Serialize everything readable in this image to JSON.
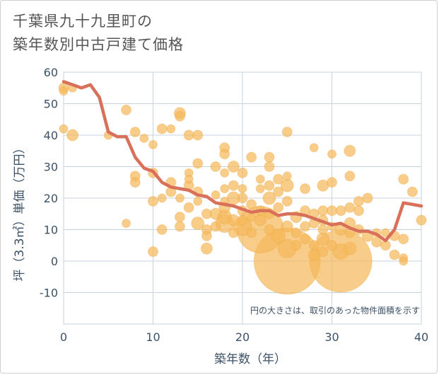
{
  "page": {
    "title": "千葉県九十九里町の\n築年数別中古戸建て価格"
  },
  "chart_data": {
    "type": "scatter",
    "title": "千葉県九十九里町の築年数別中古戸建て価格",
    "xlabel": "築年数（年）",
    "ylabel": "坪（3.3㎡）単価（万円）",
    "xlim": [
      0,
      40
    ],
    "ylim": [
      -20,
      60
    ],
    "xticks": [
      0,
      10,
      20,
      30,
      40
    ],
    "yticks": [
      -10,
      0,
      10,
      20,
      30,
      40,
      50,
      60
    ],
    "grid": true,
    "note": "円の大きさは、取引のあった物件面積を示す",
    "colors": {
      "bubble": "#f5b95b",
      "line": "#d9705a",
      "grid": "#c9d3df",
      "text": "#3d5166"
    },
    "trend_line": {
      "x": [
        0,
        1,
        2,
        3,
        4,
        5,
        6,
        7,
        8,
        9,
        10,
        11,
        12,
        13,
        14,
        15,
        16,
        17,
        18,
        19,
        20,
        21,
        22,
        23,
        24,
        25,
        26,
        27,
        28,
        29,
        30,
        31,
        32,
        33,
        34,
        35,
        36,
        37,
        38,
        39,
        40
      ],
      "y": [
        57,
        56,
        55,
        56,
        52,
        41,
        39.5,
        39.5,
        33,
        29.5,
        28.5,
        25,
        23.5,
        23,
        22.5,
        21,
        20.5,
        18.5,
        18,
        17.5,
        16.5,
        15.5,
        16,
        16,
        14.5,
        15,
        15,
        14.5,
        13.5,
        12.5,
        11.5,
        12,
        10.5,
        9.5,
        9.5,
        8.5,
        6.5,
        10,
        18.5,
        18,
        17.5
      ]
    },
    "points": [
      {
        "x": 0,
        "y": 55,
        "s": 7
      },
      {
        "x": 0,
        "y": 54,
        "s": 6
      },
      {
        "x": 0,
        "y": 42,
        "s": 6
      },
      {
        "x": 1,
        "y": 55,
        "s": 6
      },
      {
        "x": 1,
        "y": 40,
        "s": 8
      },
      {
        "x": 5,
        "y": 40,
        "s": 6
      },
      {
        "x": 7,
        "y": 48,
        "s": 7
      },
      {
        "x": 7,
        "y": 12,
        "s": 6
      },
      {
        "x": 8,
        "y": 41,
        "s": 7
      },
      {
        "x": 8,
        "y": 27,
        "s": 7
      },
      {
        "x": 8,
        "y": 25,
        "s": 7
      },
      {
        "x": 9,
        "y": 39,
        "s": 6
      },
      {
        "x": 10,
        "y": 37,
        "s": 6
      },
      {
        "x": 10,
        "y": 28,
        "s": 7
      },
      {
        "x": 10,
        "y": 19,
        "s": 7
      },
      {
        "x": 10,
        "y": 3,
        "s": 7
      },
      {
        "x": 11,
        "y": 42,
        "s": 7
      },
      {
        "x": 11,
        "y": 20,
        "s": 6
      },
      {
        "x": 11,
        "y": 10,
        "s": 7
      },
      {
        "x": 12,
        "y": 42,
        "s": 6
      },
      {
        "x": 12,
        "y": 25,
        "s": 7
      },
      {
        "x": 12,
        "y": 22,
        "s": 7
      },
      {
        "x": 13,
        "y": 47,
        "s": 8
      },
      {
        "x": 13,
        "y": 46,
        "s": 7
      },
      {
        "x": 13,
        "y": 20,
        "s": 6
      },
      {
        "x": 13,
        "y": 14,
        "s": 7
      },
      {
        "x": 13,
        "y": 11,
        "s": 7
      },
      {
        "x": 14,
        "y": 40,
        "s": 7
      },
      {
        "x": 14,
        "y": 28,
        "s": 6
      },
      {
        "x": 14,
        "y": 26,
        "s": 6
      },
      {
        "x": 14,
        "y": 24,
        "s": 7
      },
      {
        "x": 14,
        "y": 17,
        "s": 7
      },
      {
        "x": 15,
        "y": 40,
        "s": 7
      },
      {
        "x": 15,
        "y": 31,
        "s": 7
      },
      {
        "x": 15,
        "y": 22,
        "s": 7
      },
      {
        "x": 15,
        "y": 19,
        "s": 6
      },
      {
        "x": 15,
        "y": 12,
        "s": 9
      },
      {
        "x": 16,
        "y": 15,
        "s": 7
      },
      {
        "x": 16,
        "y": 10,
        "s": 7
      },
      {
        "x": 16,
        "y": 8,
        "s": 7
      },
      {
        "x": 16,
        "y": 4,
        "s": 8
      },
      {
        "x": 17,
        "y": 30,
        "s": 7
      },
      {
        "x": 17,
        "y": 21,
        "s": 6
      },
      {
        "x": 17,
        "y": 15,
        "s": 8
      },
      {
        "x": 17,
        "y": 11,
        "s": 7
      },
      {
        "x": 18,
        "y": 36,
        "s": 7
      },
      {
        "x": 18,
        "y": 34,
        "s": 7
      },
      {
        "x": 18,
        "y": 28,
        "s": 6
      },
      {
        "x": 18,
        "y": 23,
        "s": 6
      },
      {
        "x": 18,
        "y": 19,
        "s": 6
      },
      {
        "x": 18,
        "y": 17,
        "s": 8
      },
      {
        "x": 18,
        "y": 14,
        "s": 10
      },
      {
        "x": 18,
        "y": 12,
        "s": 13
      },
      {
        "x": 19,
        "y": 30,
        "s": 8
      },
      {
        "x": 19,
        "y": 24,
        "s": 7
      },
      {
        "x": 19,
        "y": 20,
        "s": 9
      },
      {
        "x": 19,
        "y": 13,
        "s": 8
      },
      {
        "x": 19,
        "y": 9,
        "s": 7
      },
      {
        "x": 20,
        "y": 28,
        "s": 7
      },
      {
        "x": 20,
        "y": 23,
        "s": 6
      },
      {
        "x": 20,
        "y": 20,
        "s": 7
      },
      {
        "x": 20,
        "y": 16,
        "s": 7
      },
      {
        "x": 20,
        "y": 13,
        "s": 7
      },
      {
        "x": 20,
        "y": 11,
        "s": 13
      },
      {
        "x": 21,
        "y": 33,
        "s": 7
      },
      {
        "x": 21,
        "y": 18,
        "s": 7
      },
      {
        "x": 21,
        "y": 14,
        "s": 6
      },
      {
        "x": 21,
        "y": 9,
        "s": 7
      },
      {
        "x": 22,
        "y": 26,
        "s": 6
      },
      {
        "x": 22,
        "y": 23,
        "s": 6
      },
      {
        "x": 22,
        "y": 16,
        "s": 7
      },
      {
        "x": 22,
        "y": 13,
        "s": 8
      },
      {
        "x": 22,
        "y": 10,
        "s": 33
      },
      {
        "x": 23,
        "y": 33,
        "s": 7
      },
      {
        "x": 23,
        "y": 30,
        "s": 7
      },
      {
        "x": 23,
        "y": 24,
        "s": 7
      },
      {
        "x": 23,
        "y": 20,
        "s": 9
      },
      {
        "x": 23,
        "y": 15,
        "s": 7
      },
      {
        "x": 23,
        "y": 10,
        "s": 7
      },
      {
        "x": 24,
        "y": 26,
        "s": 7
      },
      {
        "x": 24,
        "y": 22,
        "s": 7
      },
      {
        "x": 24,
        "y": 17,
        "s": 7
      },
      {
        "x": 24,
        "y": 8,
        "s": 10
      },
      {
        "x": 25,
        "y": 41,
        "s": 7
      },
      {
        "x": 25,
        "y": 27,
        "s": 6
      },
      {
        "x": 25,
        "y": 24,
        "s": 9
      },
      {
        "x": 25,
        "y": 19,
        "s": 7
      },
      {
        "x": 25,
        "y": 11,
        "s": 8
      },
      {
        "x": 25,
        "y": 4,
        "s": 13
      },
      {
        "x": 25,
        "y": 0,
        "s": 47
      },
      {
        "x": 26,
        "y": 14,
        "s": 8
      },
      {
        "x": 26,
        "y": 9,
        "s": 7
      },
      {
        "x": 26,
        "y": 5,
        "s": 7
      },
      {
        "x": 27,
        "y": 23,
        "s": 7
      },
      {
        "x": 27,
        "y": 16,
        "s": 7
      },
      {
        "x": 27,
        "y": 11,
        "s": 7
      },
      {
        "x": 27,
        "y": 7,
        "s": 7
      },
      {
        "x": 28,
        "y": 36,
        "s": 6
      },
      {
        "x": 28,
        "y": 15,
        "s": 7
      },
      {
        "x": 28,
        "y": 12,
        "s": 7
      },
      {
        "x": 28,
        "y": 5,
        "s": 7
      },
      {
        "x": 28,
        "y": 2,
        "s": 8
      },
      {
        "x": 29,
        "y": 24,
        "s": 8
      },
      {
        "x": 29,
        "y": 16,
        "s": 7
      },
      {
        "x": 29,
        "y": 13,
        "s": 7
      },
      {
        "x": 29,
        "y": 10,
        "s": 7
      },
      {
        "x": 29,
        "y": 7,
        "s": 9
      },
      {
        "x": 29,
        "y": 3,
        "s": 7
      },
      {
        "x": 30,
        "y": 34,
        "s": 6
      },
      {
        "x": 30,
        "y": 25,
        "s": 7
      },
      {
        "x": 30,
        "y": 16,
        "s": 7
      },
      {
        "x": 30,
        "y": 11,
        "s": 6
      },
      {
        "x": 30,
        "y": 5,
        "s": 7
      },
      {
        "x": 31,
        "y": 16,
        "s": 7
      },
      {
        "x": 31,
        "y": 10,
        "s": 8
      },
      {
        "x": 31,
        "y": 3,
        "s": 11
      },
      {
        "x": 31,
        "y": 0,
        "s": 44
      },
      {
        "x": 32,
        "y": 35,
        "s": 8
      },
      {
        "x": 32,
        "y": 27,
        "s": 7
      },
      {
        "x": 32,
        "y": 17,
        "s": 7
      },
      {
        "x": 32,
        "y": 12,
        "s": 8
      },
      {
        "x": 32,
        "y": 9,
        "s": 7
      },
      {
        "x": 32,
        "y": 4,
        "s": 9
      },
      {
        "x": 33,
        "y": 19,
        "s": 7
      },
      {
        "x": 33,
        "y": 16,
        "s": 7
      },
      {
        "x": 33,
        "y": 10,
        "s": 7
      },
      {
        "x": 34,
        "y": 20,
        "s": 7
      },
      {
        "x": 34,
        "y": 8,
        "s": 8
      },
      {
        "x": 35,
        "y": 6,
        "s": 7
      },
      {
        "x": 35,
        "y": 9,
        "s": 6
      },
      {
        "x": 36,
        "y": 9,
        "s": 6
      },
      {
        "x": 36,
        "y": 5,
        "s": 7
      },
      {
        "x": 37,
        "y": 8,
        "s": 7
      },
      {
        "x": 37,
        "y": 2,
        "s": 7
      },
      {
        "x": 38,
        "y": 26,
        "s": 7
      },
      {
        "x": 38,
        "y": 7,
        "s": 7
      },
      {
        "x": 38,
        "y": 1,
        "s": 6
      },
      {
        "x": 38,
        "y": 0,
        "s": 6
      },
      {
        "x": 39,
        "y": 22,
        "s": 7
      },
      {
        "x": 40,
        "y": 13,
        "s": 7
      }
    ]
  }
}
